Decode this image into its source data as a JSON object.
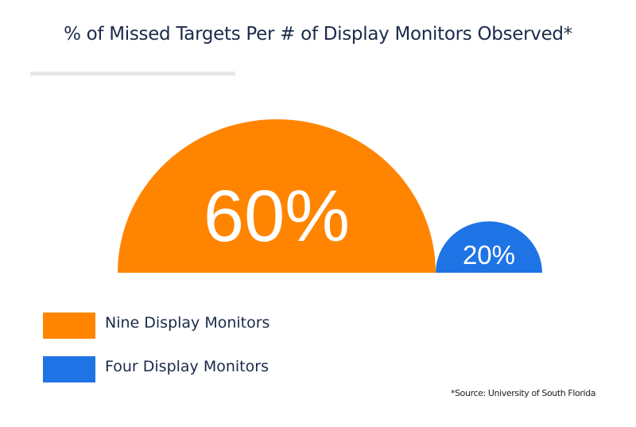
{
  "chart_data": {
    "type": "semicircle-bubble",
    "title": "% of Missed Targets Per # of Display Monitors Observed*",
    "categories": [
      "Nine Display Monitors",
      "Four Display Monitors"
    ],
    "values": [
      60,
      20
    ],
    "value_labels": [
      "60%",
      "20%"
    ],
    "colors": [
      "#ff8500",
      "#1f74e5"
    ],
    "unit": "%",
    "legend": {
      "placement": "bottom-left",
      "entries": [
        {
          "label": "Nine Display Monitors",
          "color": "#ff8500"
        },
        {
          "label": "Four Display Monitors",
          "color": "#1f74e5"
        }
      ]
    },
    "source_note": "*Source: University of South Florida"
  }
}
